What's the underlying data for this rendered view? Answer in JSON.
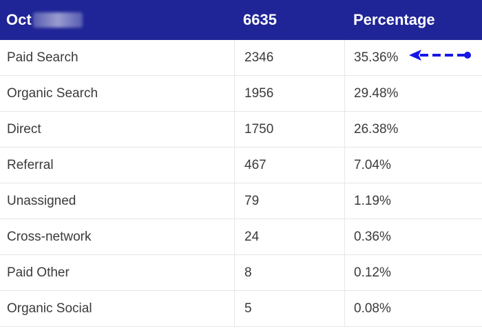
{
  "table": {
    "headers": {
      "col1": "Oct",
      "col2": "6635",
      "col3": "Percentage"
    },
    "rows": [
      {
        "source": "Paid Search",
        "count": "2346",
        "pct": "35.36%"
      },
      {
        "source": "Organic Search",
        "count": "1956",
        "pct": "29.48%"
      },
      {
        "source": "Direct",
        "count": "1750",
        "pct": "26.38%"
      },
      {
        "source": "Referral",
        "count": "467",
        "pct": "7.04%"
      },
      {
        "source": "Unassigned",
        "count": "79",
        "pct": "1.19%"
      },
      {
        "source": "Cross-network",
        "count": "24",
        "pct": "0.36%"
      },
      {
        "source": "Paid Other",
        "count": "8",
        "pct": "0.12%"
      },
      {
        "source": "Organic Social",
        "count": "5",
        "pct": "0.08%"
      }
    ]
  },
  "annotation": {
    "icon": "dashed-arrow-left-icon",
    "color": "#1616e8"
  },
  "colors": {
    "header_bg": "#1f2596",
    "header_text": "#ffffff",
    "body_text": "#3a3a3a",
    "grid": "#e6e6e6"
  }
}
